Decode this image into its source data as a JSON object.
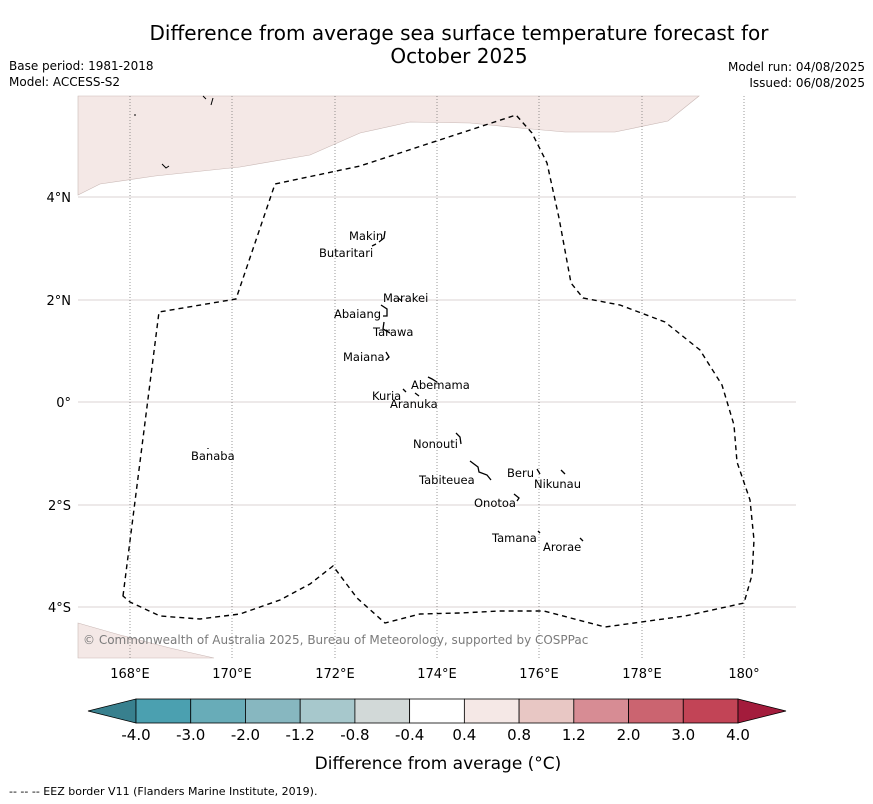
{
  "title_line1": "Difference from average sea surface temperature forecast for",
  "title_line2": "October 2025",
  "meta": {
    "base_period": "Base period: 1981-2018",
    "model": "Model: ACCESS-S2",
    "model_run": "Model run: 04/08/2025",
    "issued": "Issued: 06/08/2025"
  },
  "map": {
    "lat_labels": [
      "4°N",
      "2°N",
      "0°",
      "2°S",
      "4°S"
    ],
    "lon_labels": [
      "168°E",
      "170°E",
      "172°E",
      "174°E",
      "176°E",
      "178°E",
      "180°"
    ],
    "islands": [
      "Makin",
      "Butaritari",
      "Marakei",
      "Abaiang",
      "Tarawa",
      "Maiana",
      "Abemama",
      "Kuria",
      "Aranuka",
      "Nonouti",
      "Banaba",
      "Tabiteuea",
      "Beru",
      "Nikunau",
      "Onotoa",
      "Tamana",
      "Arorae"
    ],
    "copyright": "© Commonwealth of Australia 2025, Bureau of Meteorology, supported by COSPPac",
    "land_color": "#f4e8e6"
  },
  "colorbar": {
    "ticks": [
      "-4.0",
      "-3.0",
      "-2.0",
      "-1.2",
      "-0.8",
      "-0.4",
      "0.4",
      "0.8",
      "1.2",
      "2.0",
      "3.0",
      "4.0"
    ],
    "colors": [
      "#38808e",
      "#4ba0b0",
      "#68acb8",
      "#87b7c0",
      "#a7c8cc",
      "#d2d9d8",
      "#ffffff",
      "#f5e8e6",
      "#e8c7c4",
      "#d78c94",
      "#cb6470",
      "#c24456",
      "#a31c3c"
    ],
    "label": "Difference from average (°C)"
  },
  "footer": "--  --  -- EEZ border V11 (Flanders Marine Institute, 2019)."
}
